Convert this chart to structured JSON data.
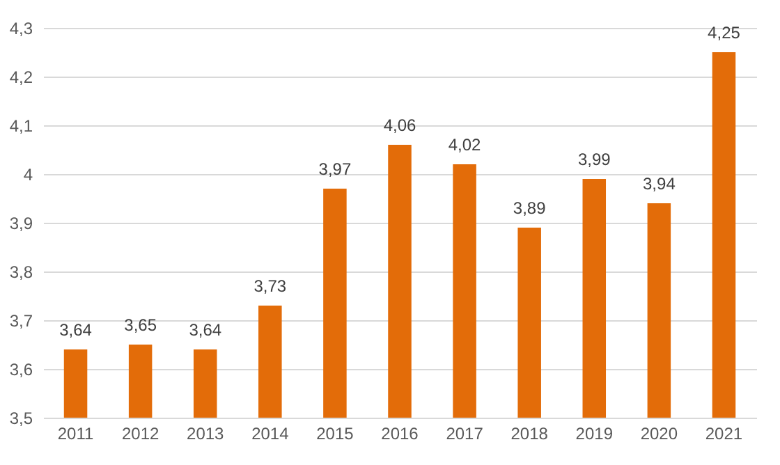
{
  "chart_data": {
    "type": "bar",
    "categories": [
      "2011",
      "2012",
      "2013",
      "2014",
      "2015",
      "2016",
      "2017",
      "2018",
      "2019",
      "2020",
      "2021"
    ],
    "values": [
      3.64,
      3.65,
      3.64,
      3.73,
      3.97,
      4.06,
      4.02,
      3.89,
      3.99,
      3.94,
      4.25
    ],
    "value_labels": [
      "3,64",
      "3,65",
      "3,64",
      "3,73",
      "3,97",
      "4,06",
      "4,02",
      "3,89",
      "3,99",
      "3,94",
      "4,25"
    ],
    "color": "#e36c09",
    "ylim": [
      3.5,
      4.3
    ],
    "yticks": [
      {
        "value": 3.5,
        "label": "3,5"
      },
      {
        "value": 3.6,
        "label": "3,6"
      },
      {
        "value": 3.7,
        "label": "3,7"
      },
      {
        "value": 3.8,
        "label": "3,8"
      },
      {
        "value": 3.9,
        "label": "3,9"
      },
      4,
      {
        "value": 4.1,
        "label": "4,1"
      },
      {
        "value": 4.2,
        "label": "4,2"
      },
      {
        "value": 4.3,
        "label": "4,3"
      }
    ],
    "grid": true
  }
}
